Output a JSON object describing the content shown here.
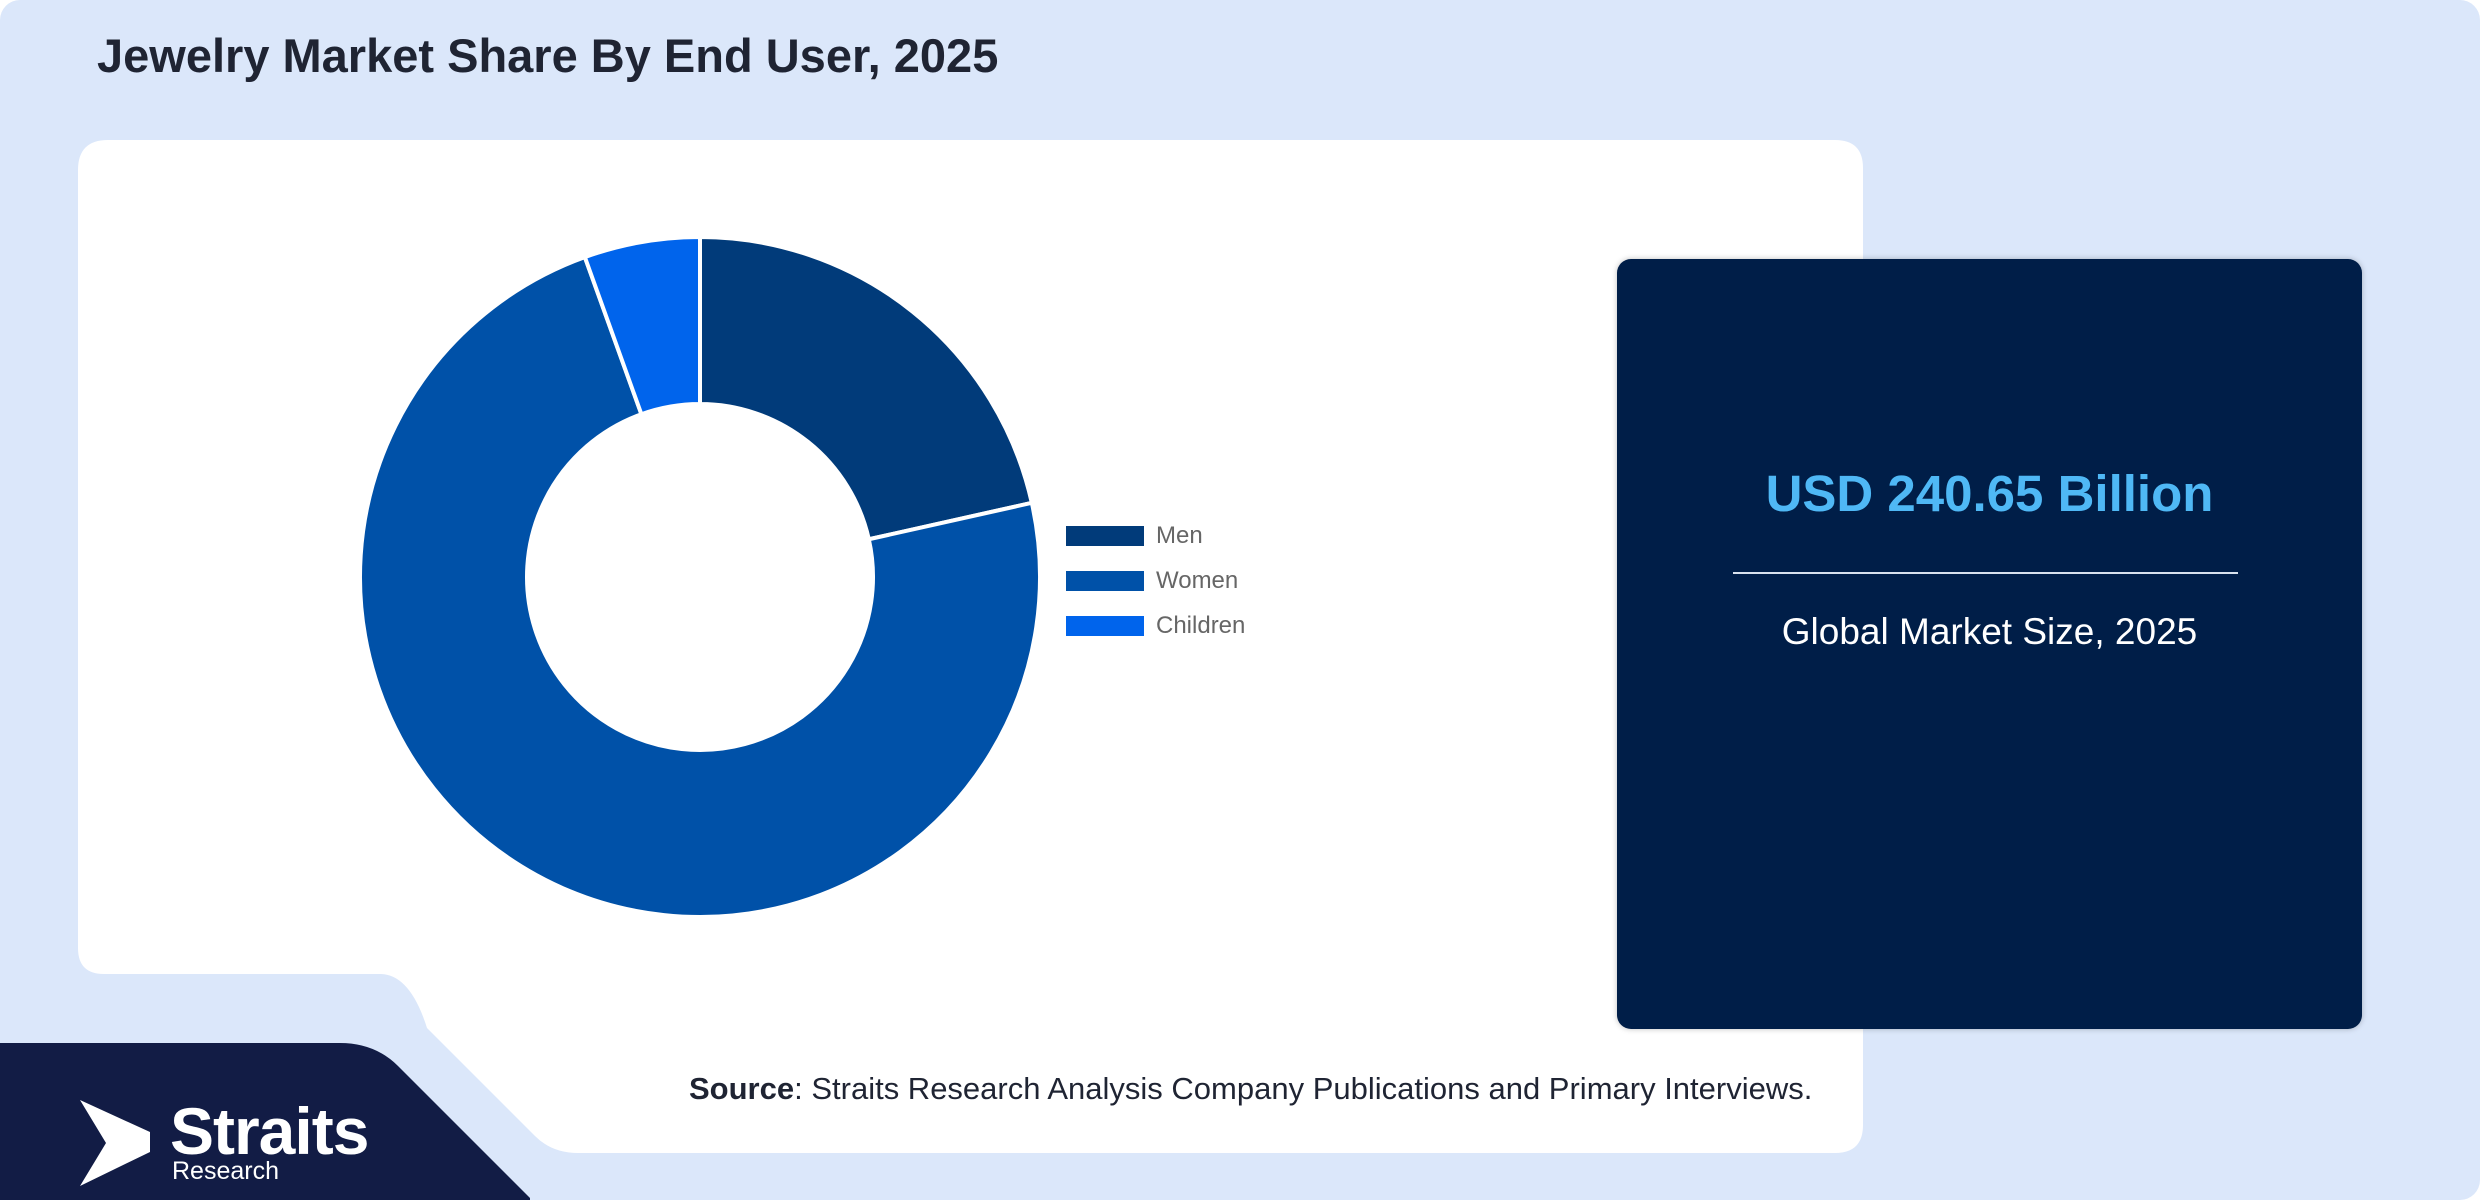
{
  "title": "Jewelry Market Share By End User, 2025",
  "market": {
    "value": "USD 240.65 Billion",
    "label": "Global Market Size, 2025"
  },
  "source": {
    "prefix": "Source",
    "text": ": Straits Research Analysis Company Publications and Primary Interviews."
  },
  "logo": {
    "name": "Straits",
    "subtitle": "Research"
  },
  "colors": {
    "page_background": "#dbe7fa",
    "panel": "#ffffff",
    "card": "#001e48",
    "footer": "#121c45",
    "accent_value": "#4fb8f5"
  },
  "chart_data": {
    "type": "pie",
    "donut": true,
    "title": "",
    "legend_position": "right",
    "categories": [
      "Men",
      "Women",
      "Children"
    ],
    "values": [
      21.5,
      73.0,
      5.5
    ],
    "colors": [
      "#013b7a",
      "#0051a8",
      "#0064ec"
    ]
  }
}
